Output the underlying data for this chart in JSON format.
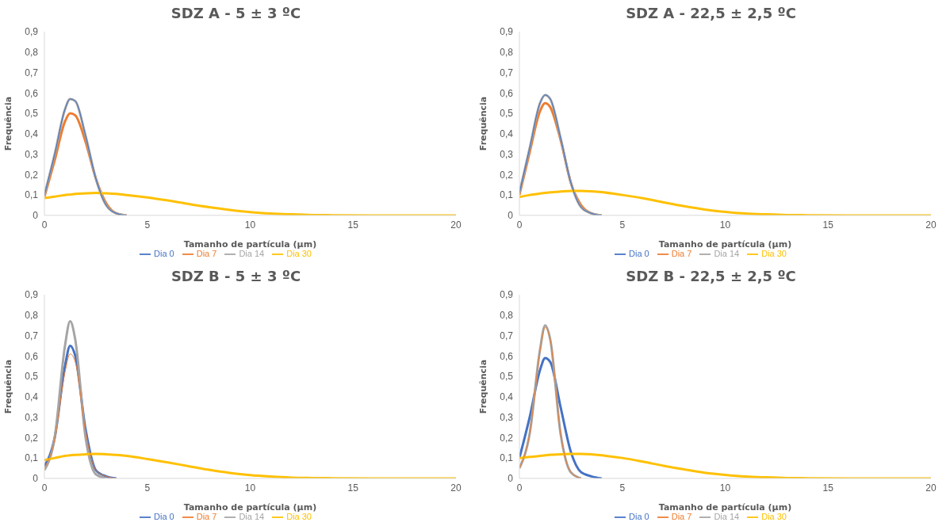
{
  "chart_data": [
    {
      "type": "line",
      "title": "SDZ A - 5 ± 3 ºC",
      "xlabel": "Tamanho de partícula (µm)",
      "ylabel": "Frequência",
      "x": [
        0,
        0.5,
        1,
        1.25,
        1.5,
        2,
        2.5,
        3,
        3.5,
        4,
        5,
        6,
        7,
        8,
        9,
        10,
        11,
        12,
        13,
        14,
        16,
        18,
        20
      ],
      "xlim": [
        0,
        20
      ],
      "xticks": [
        0,
        5,
        10,
        15,
        20
      ],
      "ylim": [
        0,
        0.9
      ],
      "yticks": [
        {
          "value": 0,
          "label": "0"
        },
        {
          "value": 0.1,
          "label": "0,1"
        },
        {
          "value": 0.2,
          "label": "0,2"
        },
        {
          "value": 0.3,
          "label": "0,3"
        },
        {
          "value": 0.4,
          "label": "0,4"
        },
        {
          "value": 0.5,
          "label": "0,5"
        },
        {
          "value": 0.6,
          "label": "0,6"
        },
        {
          "value": 0.7,
          "label": "0,7"
        },
        {
          "value": 0.8,
          "label": "0,8"
        },
        {
          "value": 0.9,
          "label": "0,9"
        }
      ],
      "grid": false,
      "legend": "bottom",
      "marker": "none",
      "line_style": "solid",
      "series": [
        {
          "name": "Dia 0",
          "color": "#4472c4",
          "values": [
            0.1,
            0.3,
            0.52,
            0.57,
            0.56,
            0.39,
            0.18,
            0.05,
            0.01,
            0,
            null,
            null,
            null,
            null,
            null,
            null,
            null,
            null,
            null,
            null,
            null,
            null,
            null
          ]
        },
        {
          "name": "Dia 7",
          "color": "#ed7d31",
          "values": [
            0.09,
            0.27,
            0.46,
            0.5,
            0.49,
            0.36,
            0.18,
            0.06,
            0.01,
            0,
            null,
            null,
            null,
            null,
            null,
            null,
            null,
            null,
            null,
            null,
            null,
            null,
            null
          ]
        },
        {
          "name": "Dia 14",
          "color": "#a5a5a5",
          "values": [
            0.1,
            0.3,
            0.52,
            0.57,
            0.56,
            0.39,
            0.18,
            0.05,
            0.01,
            0,
            null,
            null,
            null,
            null,
            null,
            null,
            null,
            null,
            null,
            null,
            null,
            null,
            null
          ]
        },
        {
          "name": "Dia 30",
          "color": "#ffc000",
          "values": [
            0.085,
            0.092,
            0.1,
            0.102,
            0.105,
            0.108,
            0.11,
            0.108,
            0.105,
            0.1,
            0.088,
            0.073,
            0.056,
            0.04,
            0.027,
            0.016,
            0.009,
            0.005,
            0.002,
            0.001,
            0,
            0,
            0
          ]
        }
      ]
    },
    {
      "type": "line",
      "title": "SDZ A - 22,5 ± 2,5 ºC",
      "xlabel": "Tamanho de partícula (µm)",
      "ylabel": "Frequência",
      "x": [
        0,
        0.5,
        1,
        1.25,
        1.5,
        2,
        2.5,
        3,
        3.5,
        4,
        5,
        6,
        7,
        8,
        9,
        10,
        11,
        12,
        13,
        14,
        16,
        18,
        20
      ],
      "xlim": [
        0,
        20
      ],
      "xticks": [
        0,
        5,
        10,
        15,
        20
      ],
      "ylim": [
        0,
        0.9
      ],
      "yticks": [
        {
          "value": 0,
          "label": "0"
        },
        {
          "value": 0.1,
          "label": "0,1"
        },
        {
          "value": 0.2,
          "label": "0,2"
        },
        {
          "value": 0.3,
          "label": "0,3"
        },
        {
          "value": 0.4,
          "label": "0,4"
        },
        {
          "value": 0.5,
          "label": "0,5"
        },
        {
          "value": 0.6,
          "label": "0,6"
        },
        {
          "value": 0.7,
          "label": "0,7"
        },
        {
          "value": 0.8,
          "label": "0,8"
        },
        {
          "value": 0.9,
          "label": "0,9"
        }
      ],
      "grid": false,
      "legend": "bottom",
      "marker": "none",
      "line_style": "solid",
      "series": [
        {
          "name": "Dia 0",
          "color": "#4472c4",
          "values": [
            0.11,
            0.33,
            0.55,
            0.59,
            0.57,
            0.38,
            0.16,
            0.04,
            0.01,
            0,
            null,
            null,
            null,
            null,
            null,
            null,
            null,
            null,
            null,
            null,
            null,
            null,
            null
          ]
        },
        {
          "name": "Dia 7",
          "color": "#ed7d31",
          "values": [
            0.1,
            0.31,
            0.51,
            0.55,
            0.53,
            0.37,
            0.16,
            0.05,
            0.01,
            0,
            null,
            null,
            null,
            null,
            null,
            null,
            null,
            null,
            null,
            null,
            null,
            null,
            null
          ]
        },
        {
          "name": "Dia 14",
          "color": "#a5a5a5",
          "values": [
            0.11,
            0.33,
            0.55,
            0.59,
            0.57,
            0.38,
            0.16,
            0.04,
            0.01,
            0,
            null,
            null,
            null,
            null,
            null,
            null,
            null,
            null,
            null,
            null,
            null,
            null,
            null
          ]
        },
        {
          "name": "Dia 30",
          "color": "#ffc000",
          "values": [
            0.09,
            0.1,
            0.107,
            0.11,
            0.113,
            0.117,
            0.12,
            0.12,
            0.118,
            0.114,
            0.1,
            0.084,
            0.064,
            0.045,
            0.029,
            0.017,
            0.009,
            0.005,
            0.002,
            0.001,
            0,
            0,
            0
          ]
        }
      ]
    },
    {
      "type": "line",
      "title": "SDZ B - 5 ± 3 ºC",
      "xlabel": "Tamanho de partícula (µm)",
      "ylabel": "Frequência",
      "x": [
        0,
        0.5,
        1,
        1.25,
        1.5,
        2,
        2.5,
        3,
        3.5,
        4,
        5,
        6,
        7,
        8,
        9,
        10,
        11,
        12,
        13,
        14,
        16,
        18,
        20
      ],
      "xlim": [
        0,
        20
      ],
      "xticks": [
        0,
        5,
        10,
        15,
        20
      ],
      "ylim": [
        0,
        0.9
      ],
      "yticks": [
        {
          "value": 0,
          "label": "0"
        },
        {
          "value": 0.1,
          "label": "0,1"
        },
        {
          "value": 0.2,
          "label": "0,2"
        },
        {
          "value": 0.3,
          "label": "0,3"
        },
        {
          "value": 0.4,
          "label": "0,4"
        },
        {
          "value": 0.5,
          "label": "0,5"
        },
        {
          "value": 0.6,
          "label": "0,6"
        },
        {
          "value": 0.7,
          "label": "0,7"
        },
        {
          "value": 0.8,
          "label": "0,8"
        },
        {
          "value": 0.9,
          "label": "0,9"
        }
      ],
      "grid": false,
      "legend": "bottom",
      "marker": "none",
      "line_style": "solid",
      "series": [
        {
          "name": "Dia 0",
          "color": "#4472c4",
          "values": [
            0.06,
            0.2,
            0.55,
            0.65,
            0.6,
            0.24,
            0.04,
            0.01,
            0,
            null,
            null,
            null,
            null,
            null,
            null,
            null,
            null,
            null,
            null,
            null,
            null,
            null,
            null
          ]
        },
        {
          "name": "Dia 7",
          "color": "#ed7d31",
          "values": [
            0.05,
            0.19,
            0.52,
            0.61,
            0.57,
            0.23,
            0.04,
            0.01,
            0,
            null,
            null,
            null,
            null,
            null,
            null,
            null,
            null,
            null,
            null,
            null,
            null,
            null,
            null
          ]
        },
        {
          "name": "Dia 14",
          "color": "#a5a5a5",
          "values": [
            0.04,
            0.2,
            0.65,
            0.77,
            0.68,
            0.2,
            0.02,
            0,
            null,
            null,
            null,
            null,
            null,
            null,
            null,
            null,
            null,
            null,
            null,
            null,
            null,
            null,
            null
          ]
        },
        {
          "name": "Dia 30",
          "color": "#ffc000",
          "values": [
            0.09,
            0.1,
            0.11,
            0.113,
            0.115,
            0.118,
            0.12,
            0.118,
            0.115,
            0.11,
            0.095,
            0.078,
            0.06,
            0.042,
            0.027,
            0.016,
            0.009,
            0.004,
            0.002,
            0.001,
            0,
            0,
            0
          ]
        }
      ]
    },
    {
      "type": "line",
      "title": "SDZ B - 22,5 ± 2,5 ºC",
      "xlabel": "Tamanho de partícula (µm)",
      "ylabel": "Frequência",
      "x": [
        0,
        0.5,
        1,
        1.25,
        1.5,
        2,
        2.5,
        3,
        3.5,
        4,
        5,
        6,
        7,
        8,
        9,
        10,
        11,
        12,
        13,
        14,
        16,
        18,
        20
      ],
      "xlim": [
        0,
        20
      ],
      "xticks": [
        0,
        5,
        10,
        15,
        20
      ],
      "ylim": [
        0,
        0.9
      ],
      "yticks": [
        {
          "value": 0,
          "label": "0"
        },
        {
          "value": 0.1,
          "label": "0,1"
        },
        {
          "value": 0.2,
          "label": "0,2"
        },
        {
          "value": 0.3,
          "label": "0,3"
        },
        {
          "value": 0.4,
          "label": "0,4"
        },
        {
          "value": 0.5,
          "label": "0,5"
        },
        {
          "value": 0.6,
          "label": "0,6"
        },
        {
          "value": 0.7,
          "label": "0,7"
        },
        {
          "value": 0.8,
          "label": "0,8"
        },
        {
          "value": 0.9,
          "label": "0,9"
        }
      ],
      "grid": false,
      "legend": "bottom",
      "marker": "none",
      "line_style": "solid",
      "series": [
        {
          "name": "Dia 0",
          "color": "#4472c4",
          "values": [
            0.1,
            0.3,
            0.53,
            0.59,
            0.57,
            0.35,
            0.13,
            0.03,
            0.01,
            0,
            null,
            null,
            null,
            null,
            null,
            null,
            null,
            null,
            null,
            null,
            null,
            null,
            null
          ]
        },
        {
          "name": "Dia 7",
          "color": "#ed7d31",
          "values": [
            0.05,
            0.22,
            0.62,
            0.74,
            0.68,
            0.22,
            0.03,
            0,
            null,
            null,
            null,
            null,
            null,
            null,
            null,
            null,
            null,
            null,
            null,
            null,
            null,
            null,
            null
          ]
        },
        {
          "name": "Dia 14",
          "color": "#a5a5a5",
          "values": [
            0.05,
            0.22,
            0.63,
            0.75,
            0.68,
            0.22,
            0.03,
            0,
            null,
            null,
            null,
            null,
            null,
            null,
            null,
            null,
            null,
            null,
            null,
            null,
            null,
            null,
            null
          ]
        },
        {
          "name": "Dia 30",
          "color": "#ffc000",
          "values": [
            0.1,
            0.105,
            0.11,
            0.113,
            0.116,
            0.118,
            0.12,
            0.12,
            0.118,
            0.113,
            0.1,
            0.082,
            0.062,
            0.044,
            0.028,
            0.017,
            0.009,
            0.005,
            0.002,
            0.001,
            0,
            0,
            0
          ]
        }
      ]
    }
  ]
}
